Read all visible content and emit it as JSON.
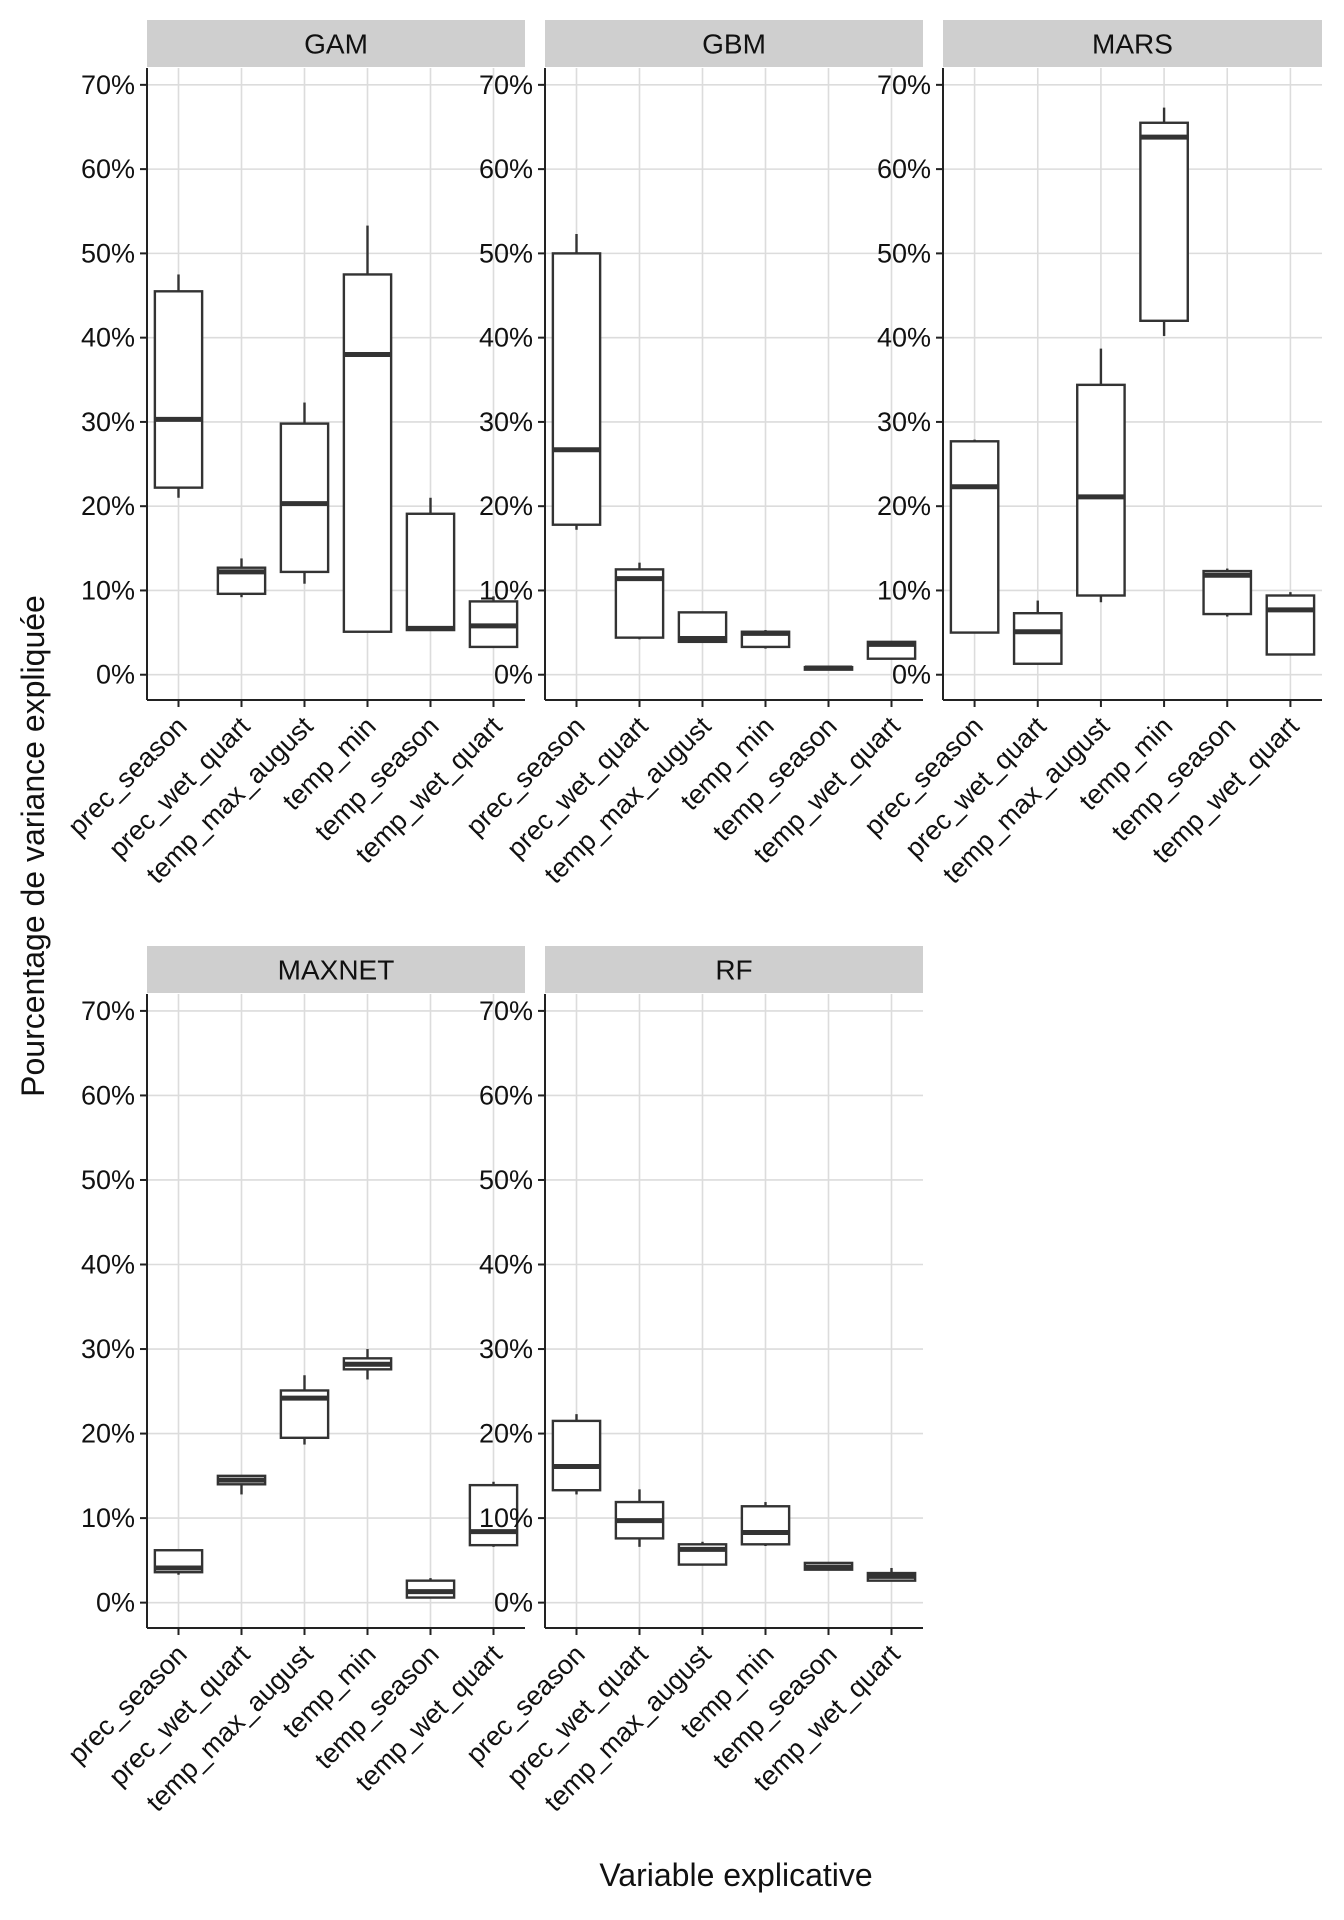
{
  "chart_data": {
    "type": "boxplot",
    "xlabel": "Variable explicative",
    "ylabel": "Pourcentage de variance expliquée",
    "ylim": [
      -3,
      72
    ],
    "yticks": [
      0,
      10,
      20,
      30,
      40,
      50,
      60,
      70
    ],
    "ytick_labels": [
      "0%",
      "10%",
      "20%",
      "30%",
      "40%",
      "50%",
      "60%",
      "70%"
    ],
    "categories": [
      "prec_season",
      "prec_wet_quart",
      "temp_max_august",
      "temp_min",
      "temp_season",
      "temp_wet_quart"
    ],
    "panels": [
      {
        "name": "GAM",
        "boxes": [
          {
            "category": "prec_season",
            "min": 21.0,
            "q1": 22.2,
            "median": 30.3,
            "q3": 45.5,
            "max": 47.5
          },
          {
            "category": "prec_wet_quart",
            "min": 9.2,
            "q1": 9.6,
            "median": 12.2,
            "q3": 12.7,
            "max": 13.8
          },
          {
            "category": "temp_max_august",
            "min": 10.8,
            "q1": 12.2,
            "median": 20.3,
            "q3": 29.8,
            "max": 32.3
          },
          {
            "category": "temp_min",
            "min": 5.1,
            "q1": 5.1,
            "median": 38.0,
            "q3": 47.5,
            "max": 53.3
          },
          {
            "category": "temp_season",
            "min": 5.3,
            "q1": 5.3,
            "median": 5.5,
            "q3": 19.1,
            "max": 21.0
          },
          {
            "category": "temp_wet_quart",
            "min": 3.3,
            "q1": 3.3,
            "median": 5.8,
            "q3": 8.7,
            "max": 9.3
          }
        ]
      },
      {
        "name": "GBM",
        "boxes": [
          {
            "category": "prec_season",
            "min": 17.2,
            "q1": 17.8,
            "median": 26.7,
            "q3": 50.0,
            "max": 52.3
          },
          {
            "category": "prec_wet_quart",
            "min": 4.2,
            "q1": 4.4,
            "median": 11.4,
            "q3": 12.5,
            "max": 13.3
          },
          {
            "category": "temp_max_august",
            "min": 3.8,
            "q1": 3.9,
            "median": 4.3,
            "q3": 7.4,
            "max": 7.4
          },
          {
            "category": "temp_min",
            "min": 3.1,
            "q1": 3.3,
            "median": 4.9,
            "q3": 5.1,
            "max": 5.3
          },
          {
            "category": "temp_season",
            "min": 0.6,
            "q1": 0.6,
            "median": 0.8,
            "q3": 0.9,
            "max": 1.0
          },
          {
            "category": "temp_wet_quart",
            "min": 1.9,
            "q1": 1.9,
            "median": 3.6,
            "q3": 3.9,
            "max": 4.0
          }
        ]
      },
      {
        "name": "MARS",
        "boxes": [
          {
            "category": "prec_season",
            "min": 4.9,
            "q1": 5.0,
            "median": 22.3,
            "q3": 27.7,
            "max": 27.9
          },
          {
            "category": "prec_wet_quart",
            "min": 1.3,
            "q1": 1.3,
            "median": 5.1,
            "q3": 7.3,
            "max": 8.8
          },
          {
            "category": "temp_max_august",
            "min": 8.6,
            "q1": 9.4,
            "median": 21.1,
            "q3": 34.4,
            "max": 38.7
          },
          {
            "category": "temp_min",
            "min": 40.2,
            "q1": 42.0,
            "median": 63.8,
            "q3": 65.5,
            "max": 67.3
          },
          {
            "category": "temp_season",
            "min": 6.9,
            "q1": 7.2,
            "median": 11.8,
            "q3": 12.3,
            "max": 12.6
          },
          {
            "category": "temp_wet_quart",
            "min": 2.4,
            "q1": 2.4,
            "median": 7.7,
            "q3": 9.4,
            "max": 9.8
          }
        ]
      },
      {
        "name": "MAXNET",
        "boxes": [
          {
            "category": "prec_season",
            "min": 3.3,
            "q1": 3.6,
            "median": 4.1,
            "q3": 6.2,
            "max": 6.2
          },
          {
            "category": "prec_wet_quart",
            "min": 12.8,
            "q1": 14.0,
            "median": 14.5,
            "q3": 15.0,
            "max": 15.0
          },
          {
            "category": "temp_max_august",
            "min": 18.7,
            "q1": 19.5,
            "median": 24.2,
            "q3": 25.1,
            "max": 26.9
          },
          {
            "category": "temp_min",
            "min": 26.4,
            "q1": 27.6,
            "median": 28.2,
            "q3": 28.9,
            "max": 30.0
          },
          {
            "category": "temp_season",
            "min": 0.6,
            "q1": 0.6,
            "median": 1.3,
            "q3": 2.6,
            "max": 2.9
          },
          {
            "category": "temp_wet_quart",
            "min": 6.6,
            "q1": 6.8,
            "median": 8.4,
            "q3": 13.9,
            "max": 14.3
          }
        ]
      },
      {
        "name": "RF",
        "boxes": [
          {
            "category": "prec_season",
            "min": 12.8,
            "q1": 13.3,
            "median": 16.1,
            "q3": 21.5,
            "max": 22.3
          },
          {
            "category": "prec_wet_quart",
            "min": 6.6,
            "q1": 7.6,
            "median": 9.7,
            "q3": 11.9,
            "max": 13.4
          },
          {
            "category": "temp_max_august",
            "min": 4.4,
            "q1": 4.5,
            "median": 6.3,
            "q3": 6.9,
            "max": 7.2
          },
          {
            "category": "temp_min",
            "min": 6.7,
            "q1": 6.9,
            "median": 8.3,
            "q3": 11.4,
            "max": 11.9
          },
          {
            "category": "temp_season",
            "min": 3.8,
            "q1": 3.9,
            "median": 4.2,
            "q3": 4.7,
            "max": 4.8
          },
          {
            "category": "temp_wet_quart",
            "min": 2.6,
            "q1": 2.6,
            "median": 3.1,
            "q3": 3.5,
            "max": 4.1
          }
        ]
      }
    ]
  }
}
